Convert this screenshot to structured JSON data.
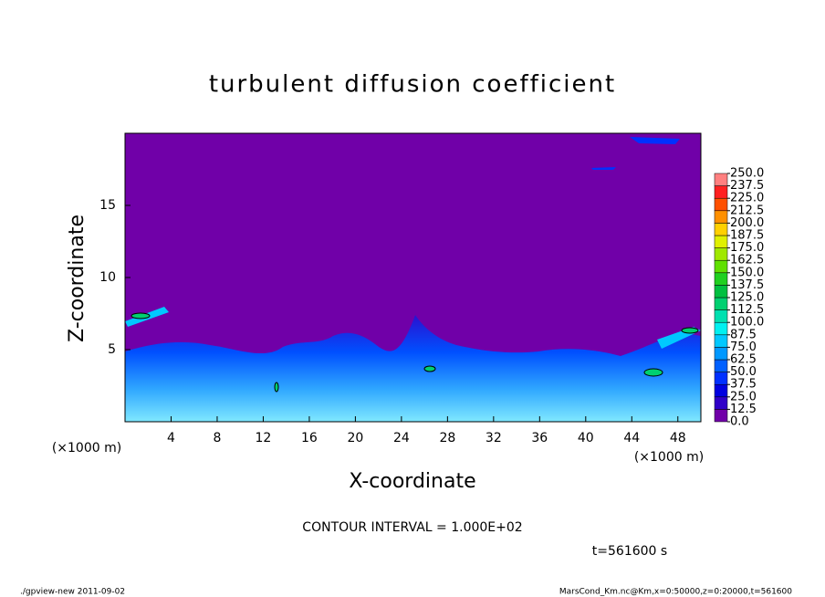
{
  "chart_data": {
    "type": "contour",
    "title": "turbulent diffusion coefficient",
    "xlabel": "X-coordinate",
    "ylabel": "Z-coordinate",
    "xunit": "(×1000 m)",
    "xunit2": "(×1000 m)",
    "xlim": [
      0,
      50
    ],
    "ylim": [
      0,
      20
    ],
    "xticks": [
      4,
      8,
      12,
      16,
      20,
      24,
      28,
      32,
      36,
      40,
      44,
      48
    ],
    "yticks": [
      5,
      10,
      15
    ],
    "contour_note": "CONTOUR INTERVAL = 1.000E+02",
    "time_label": "t=561600 s",
    "footer_left": "./gpview-new   2011-09-02",
    "footer_right": "MarsCond_Km.nc@Km,x=0:50000,z=0:20000,t=561600",
    "colorbar": {
      "ticks": [
        {
          "value": 0,
          "label": "0.0"
        },
        {
          "value": 12.5,
          "label": "12.5"
        },
        {
          "value": 25,
          "label": "25.0"
        },
        {
          "value": 37.5,
          "label": "37.5"
        },
        {
          "value": 50,
          "label": "50.0"
        },
        {
          "value": 62.5,
          "label": "62.5"
        },
        {
          "value": 75,
          "label": "75.0"
        },
        {
          "value": 87.5,
          "label": "87.5"
        },
        {
          "value": 100,
          "label": "100.0"
        },
        {
          "value": 112.5,
          "label": "112.5"
        },
        {
          "value": 125,
          "label": "125.0"
        },
        {
          "value": 137.5,
          "label": "137.5"
        },
        {
          "value": 150,
          "label": "150.0"
        },
        {
          "value": 162.5,
          "label": "162.5"
        },
        {
          "value": 175,
          "label": "175.0"
        },
        {
          "value": 187.5,
          "label": "187.5"
        },
        {
          "value": 200,
          "label": "200.0"
        },
        {
          "value": 212.5,
          "label": "212.5"
        },
        {
          "value": 225,
          "label": "225.0"
        },
        {
          "value": 237.5,
          "label": "237.5"
        },
        {
          "value": 250,
          "label": "250.0"
        }
      ],
      "colors": [
        "#7000a8",
        "#3000c8",
        "#0000e0",
        "#0030ff",
        "#0060ff",
        "#0098ff",
        "#00c8ff",
        "#00f0f0",
        "#00e0b0",
        "#00d070",
        "#00c040",
        "#20d020",
        "#60e000",
        "#a0e800",
        "#e0f000",
        "#ffd000",
        "#ff9000",
        "#ff5000",
        "#ff2020",
        "#ff8080"
      ]
    }
  }
}
